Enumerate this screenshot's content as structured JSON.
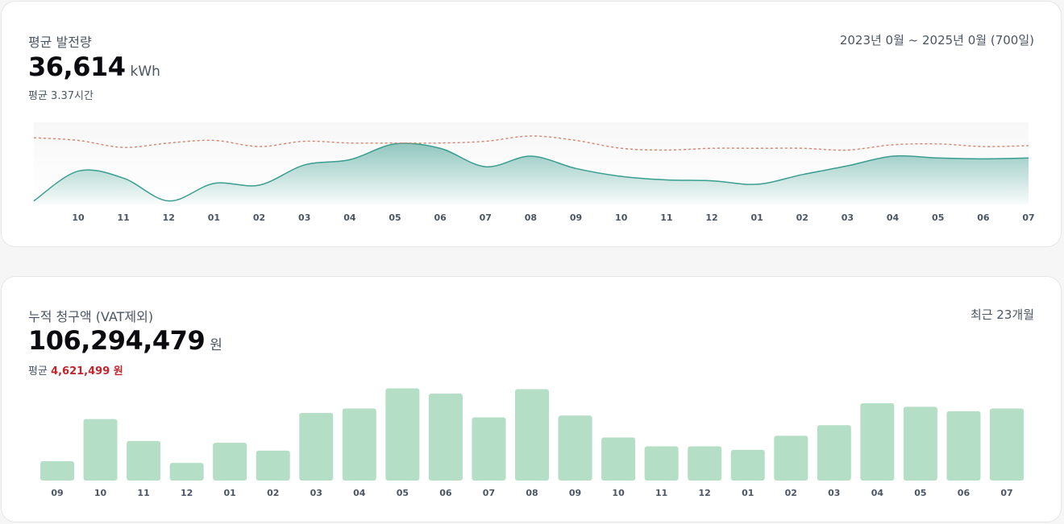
{
  "generation_card": {
    "title": "평균 발전량",
    "date_range": "2023년 0월 ~ 2025년 0월 (700일)",
    "total_value": "36,614",
    "total_unit": "kWh",
    "average_text": "평균 3.37시간"
  },
  "billing_card": {
    "title": "누적 청구액 (VAT제외)",
    "period": "최근 23개월",
    "total_value": "106,294,479",
    "total_unit": "원",
    "average_label": "평균",
    "average_value": "4,621,499 원",
    "average_color": "#c0262d"
  },
  "chart_data": [
    {
      "type": "area",
      "x_labels": [
        "10",
        "11",
        "12",
        "01",
        "02",
        "03",
        "04",
        "05",
        "06",
        "07",
        "08",
        "09",
        "10",
        "11",
        "12",
        "01",
        "02",
        "03",
        "04",
        "05",
        "06",
        "07"
      ],
      "series": [
        {
          "style": "area",
          "color": "#3a9d8f",
          "start_value": 4,
          "values": [
            38,
            30,
            4,
            24,
            22,
            45,
            51,
            69,
            64,
            43,
            55,
            41,
            32,
            28,
            27,
            23,
            34,
            44,
            55,
            53,
            52,
            53
          ]
        },
        {
          "style": "dashed-line",
          "color": "#d9826a",
          "start_value": 76,
          "values": [
            73,
            65,
            70,
            73,
            66,
            72,
            70,
            70,
            70,
            72,
            78,
            73,
            64,
            62,
            64,
            64,
            64,
            62,
            68,
            69,
            66,
            67
          ]
        }
      ],
      "ylim": [
        0,
        100
      ],
      "grid": false,
      "legend": "none"
    },
    {
      "type": "bar",
      "categories": [
        "09",
        "10",
        "11",
        "12",
        "01",
        "02",
        "03",
        "04",
        "05",
        "06",
        "07",
        "08",
        "09",
        "10",
        "11",
        "12",
        "01",
        "02",
        "03",
        "04",
        "05",
        "06",
        "07"
      ],
      "values": [
        22,
        70,
        45,
        20,
        43,
        34,
        77,
        82,
        105,
        99,
        72,
        104,
        74,
        49,
        39,
        39,
        35,
        51,
        63,
        88,
        84,
        79,
        82
      ],
      "color": "#b4dec5",
      "ylim": [
        0,
        110
      ],
      "grid": false,
      "legend": "none"
    }
  ]
}
